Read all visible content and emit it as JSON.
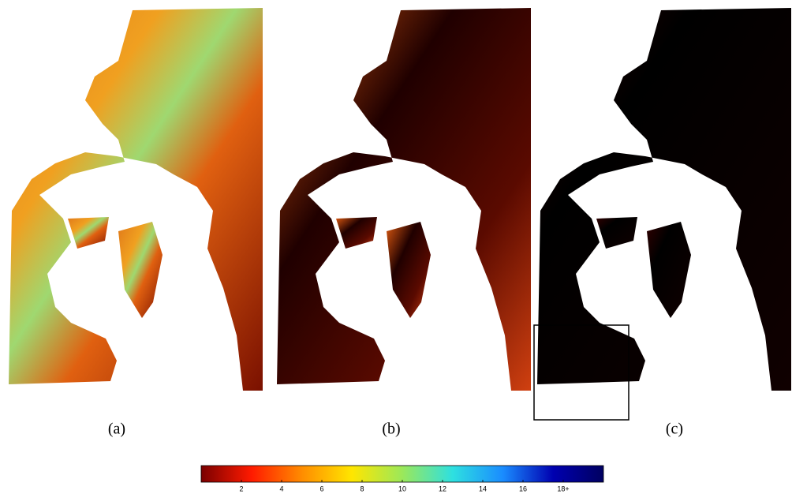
{
  "panels": [
    {
      "label": "(a)"
    },
    {
      "label": "(b)"
    },
    {
      "label": "(c)"
    }
  ],
  "colorbar": {
    "range": [
      0,
      20
    ],
    "ticks": [
      2,
      4,
      6,
      8,
      10,
      12,
      14,
      16,
      {
        "value": 18,
        "label": "18+"
      }
    ],
    "colors": [
      "#7a0000",
      "#ff1a00",
      "#ff8c00",
      "#ffe600",
      "#9be85a",
      "#2ee0e0",
      "#1a8cff",
      "#0000b0",
      "#000060"
    ]
  }
}
